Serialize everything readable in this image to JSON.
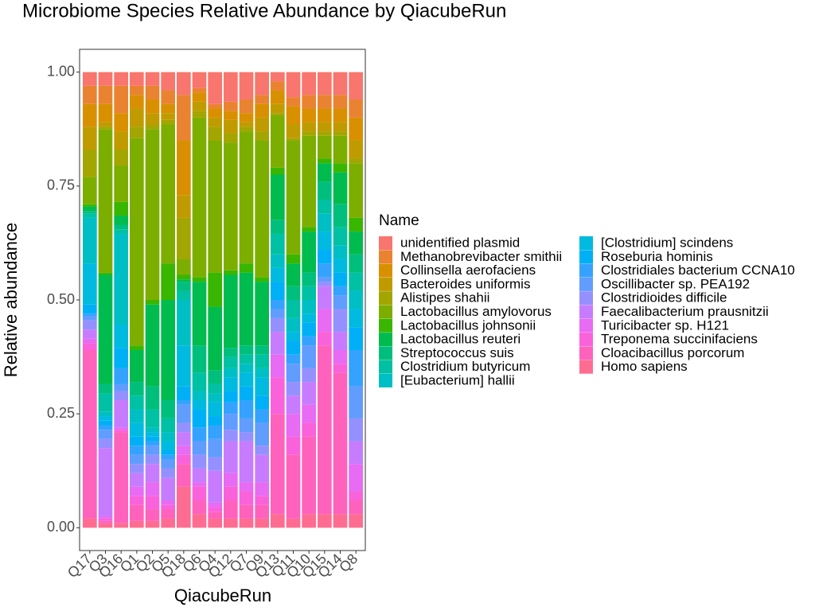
{
  "chart_data": {
    "type": "bar",
    "stacked": true,
    "title": "Microbiome Species Relative Abundance by QiacubeRun",
    "x_label": "QiacubeRun",
    "y_label": "Relative abundance",
    "legend_title": "Name",
    "legend": "right",
    "grid": false,
    "categories": [
      "Q17",
      "Q3",
      "Q16",
      "Q1",
      "Q2",
      "Q5",
      "Q18",
      "Q6",
      "Q4",
      "Q12",
      "Q7",
      "Q9",
      "Q13",
      "Q11",
      "Q10",
      "Q15",
      "Q14",
      "Q8"
    ],
    "ylim": [
      -0.05,
      1.05
    ],
    "yticks": [
      {
        "value": 0,
        "label": "0.00"
      },
      {
        "value": 0.25,
        "label": "0.25"
      },
      {
        "value": 0.5,
        "label": "0.50"
      },
      {
        "value": 0.75,
        "label": "0.75"
      },
      {
        "value": 1,
        "label": "1.00"
      }
    ],
    "series": [
      {
        "name": "unidentified plasmid",
        "color": "#F8766D",
        "values": [
          0.03,
          0.03,
          0.03,
          0.03,
          0.03,
          0.04,
          0.05,
          0.035,
          0.07,
          0.065,
          0.06,
          0.05,
          0.02,
          0.055,
          0.05,
          0.05,
          0.05,
          0.06
        ]
      },
      {
        "name": "Methanobrevibacter smithii",
        "color": "#EA8331",
        "values": [
          0.04,
          0.04,
          0.06,
          0.02,
          0.03,
          0.03,
          0.1,
          0.01,
          0.01,
          0.02,
          0.03,
          0.02,
          0.02,
          0.02,
          0.03,
          0.03,
          0.03,
          0.04
        ]
      },
      {
        "name": "Collinsella aerofaciens",
        "color": "#D89000",
        "values": [
          0.05,
          0.04,
          0.04,
          0.03,
          0.03,
          0.02,
          0.12,
          0.02,
          0.02,
          0.02,
          0.02,
          0.03,
          0.03,
          0.04,
          0.03,
          0.03,
          0.03,
          0.05
        ]
      },
      {
        "name": "Bacteroides uniformis",
        "color": "#C09B00",
        "values": [
          0.05,
          0.01,
          0.04,
          0.04,
          0.025,
          0.015,
          0.05,
          0.02,
          0.02,
          0.03,
          0.01,
          0.03,
          0.02,
          0.03,
          0.02,
          0.02,
          0.02,
          0.04
        ]
      },
      {
        "name": "Alistipes shahii",
        "color": "#A3A500",
        "values": [
          0.06,
          0.005,
          0.035,
          0.025,
          0.01,
          0.01,
          0.09,
          0.015,
          0.03,
          0.02,
          0.01,
          0.02,
          0.005,
          0.005,
          0.01,
          0.01,
          0.01,
          0.01
        ]
      },
      {
        "name": "Lactobacillus amylovorus",
        "color": "#7CAE00",
        "values": [
          0.06,
          0.315,
          0.08,
          0.455,
          0.375,
          0.305,
          0.035,
          0.35,
          0.29,
          0.28,
          0.29,
          0.3,
          0.115,
          0.25,
          0.2,
          0.05,
          0.06,
          0.12
        ]
      },
      {
        "name": "Lactobacillus johnsonii",
        "color": "#39B600",
        "values": [
          0.005,
          0.005,
          0.03,
          0.01,
          0.01,
          0.08,
          0.01,
          0.01,
          0.075,
          0.01,
          0.02,
          0.01,
          0.015,
          0.02,
          0.01,
          0.01,
          0.02,
          0.03
        ]
      },
      {
        "name": "Lactobacillus reuteri",
        "color": "#00BB4E",
        "values": [
          0.01,
          0.24,
          0.02,
          0.07,
          0.18,
          0.22,
          0.005,
          0.14,
          0.14,
          0.16,
          0.16,
          0.14,
          0.1,
          0.05,
          0.09,
          0.04,
          0.07,
          0.05
        ]
      },
      {
        "name": "Streptococcus suis",
        "color": "#00BF7D",
        "values": [
          0.005,
          0.02,
          0.01,
          0.03,
          0.05,
          0.04,
          0.02,
          0.06,
          0.03,
          0.02,
          0.02,
          0.02,
          0.03,
          0.03,
          0.03,
          0.04,
          0.05,
          0.04
        ]
      },
      {
        "name": "Clostridium butyricum",
        "color": "#00C1A3",
        "values": [
          0.01,
          0.04,
          0.01,
          0.03,
          0.04,
          0.03,
          0.02,
          0.04,
          0.02,
          0.025,
          0.02,
          0.03,
          0.045,
          0.04,
          0.03,
          0.03,
          0.04,
          0.04
        ]
      },
      {
        "name": "[Eubacterium] hallii",
        "color": "#00BFC4",
        "values": [
          0.1,
          0.01,
          0.2,
          0.03,
          0.01,
          0.02,
          0.1,
          0.02,
          0.02,
          0.02,
          0.02,
          0.02,
          0.03,
          0.03,
          0.03,
          0.04,
          0.03,
          0.04
        ]
      },
      {
        "name": "[Clostridium] scindens",
        "color": "#00BAE0",
        "values": [
          0.09,
          0.01,
          0.05,
          0.03,
          0.01,
          0.02,
          0.09,
          0.02,
          0.03,
          0.03,
          0.03,
          0.04,
          0.03,
          0.02,
          0.02,
          0.04,
          0.03,
          0.04
        ]
      },
      {
        "name": "Roseburia hominis",
        "color": "#00B0F6",
        "values": [
          0.02,
          0.01,
          0.045,
          0.02,
          0.01,
          0.01,
          0.03,
          0.04,
          0.02,
          0.025,
          0.03,
          0.03,
          0.04,
          0.03,
          0.03,
          0.03,
          0.03,
          0.05
        ]
      },
      {
        "name": "Clostridiales bacterium CCNA10",
        "color": "#35A2FF",
        "values": [
          0.005,
          0.01,
          0.035,
          0.02,
          0.01,
          0.01,
          0.01,
          0.03,
          0.03,
          0.025,
          0.04,
          0.03,
          0.02,
          0.02,
          0.02,
          0.03,
          0.02,
          0.08
        ]
      },
      {
        "name": "Oscillibacter sp. PEA192",
        "color": "#619CFF",
        "values": [
          0.01,
          0.02,
          0.015,
          0.02,
          0.02,
          0.02,
          0.04,
          0.03,
          0.04,
          0.035,
          0.03,
          0.05,
          0.02,
          0.04,
          0.05,
          0.01,
          0.03,
          0.07
        ]
      },
      {
        "name": "Clostridioides difficile",
        "color": "#9590FF",
        "values": [
          0.02,
          0.02,
          0.02,
          0.02,
          0.02,
          0.02,
          0.02,
          0.03,
          0.03,
          0.025,
          0.02,
          0.02,
          0.03,
          0.03,
          0.03,
          0.01,
          0.05,
          0.05
        ]
      },
      {
        "name": "Faecalibacterium prausnitzii",
        "color": "#C77CFF",
        "values": [
          0.02,
          0.15,
          0.06,
          0.03,
          0.04,
          0.05,
          0.03,
          0.03,
          0.07,
          0.07,
          0.09,
          0.06,
          0.05,
          0.04,
          0.05,
          0.05,
          0.04,
          0.05
        ]
      },
      {
        "name": "Turicibacter sp. H121",
        "color": "#E76BF3",
        "values": [
          0.01,
          0.005,
          0.005,
          0.02,
          0.03,
          0.01,
          0.02,
          0.01,
          0.01,
          0.03,
          0.02,
          0.03,
          0.05,
          0.05,
          0.04,
          0.05,
          0.03,
          0.06
        ]
      },
      {
        "name": "Treponema succinifaciens",
        "color": "#FA62DB",
        "values": [
          0.015,
          0.005,
          0.005,
          0.02,
          0.03,
          0.01,
          0.02,
          0.03,
          0.01,
          0.03,
          0.03,
          0.02,
          0.08,
          0.04,
          0.03,
          0.03,
          0.02,
          0.02
        ]
      },
      {
        "name": "Cloacibacillus porcorum",
        "color": "#FF62BC",
        "values": [
          0.37,
          0.005,
          0.2,
          0.035,
          0.025,
          0.02,
          0.05,
          0.03,
          0.015,
          0.04,
          0.03,
          0.03,
          0.22,
          0.14,
          0.17,
          0.37,
          0.31,
          0.03
        ]
      },
      {
        "name": "Homo sapiens",
        "color": "#FF6C91",
        "values": [
          0.02,
          0.01,
          0.01,
          0.015,
          0.015,
          0.02,
          0.09,
          0.03,
          0.02,
          0.02,
          0.02,
          0.02,
          0.03,
          0.02,
          0.03,
          0.03,
          0.03,
          0.03
        ]
      }
    ]
  }
}
